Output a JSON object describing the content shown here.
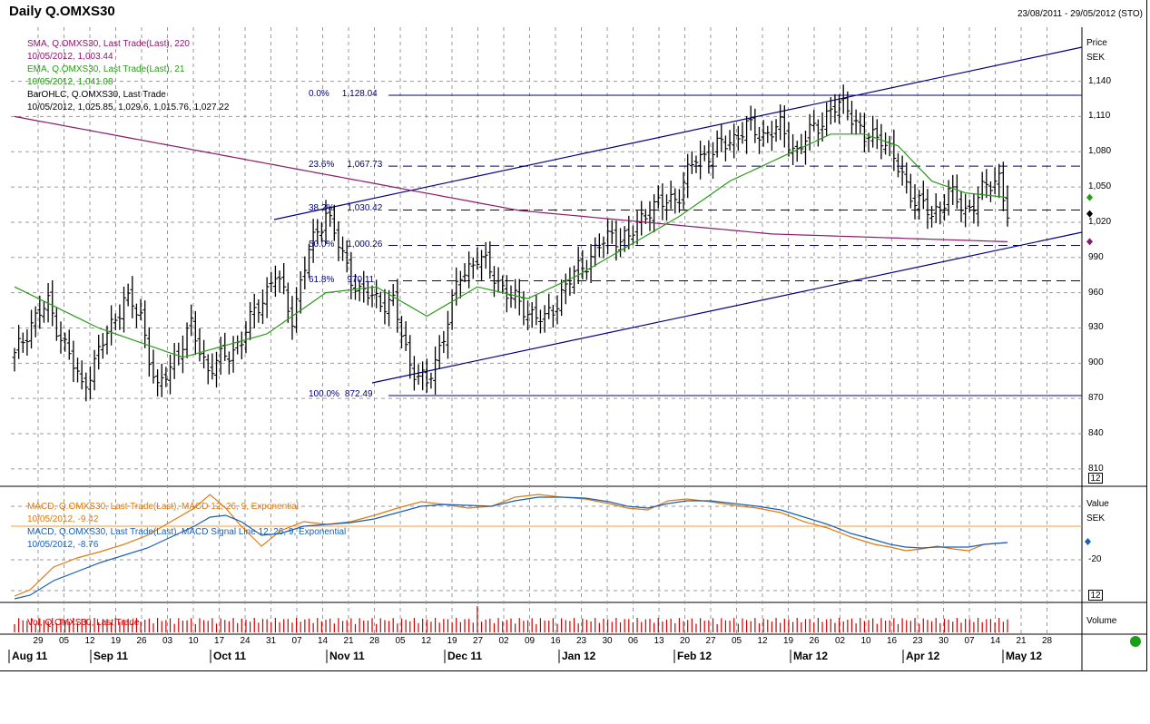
{
  "header": {
    "title": "Daily Q.OMXS30",
    "date_range": "23/08/2011 - 29/05/2012 (STO)"
  },
  "price_panel": {
    "axis_title": "Price",
    "axis_unit": "SEK",
    "ticks": [
      "1,140",
      "1,110",
      "1,080",
      "1,050",
      "1,020",
      "990",
      "960",
      "930",
      "900",
      "870",
      "840",
      "810"
    ],
    "tick_values": [
      1140,
      1110,
      1080,
      1050,
      1020,
      990,
      960,
      930,
      900,
      870,
      840,
      810
    ],
    "ylim": [
      796,
      1186
    ],
    "scale_button": "12",
    "legend": [
      {
        "line1": "SMA, Q.OMXS30, Last Trade(Last),  220",
        "line2": "10/05/2012, 1,003.44",
        "color": "#8b1a6b"
      },
      {
        "line1": "EMA, Q.OMXS30, Last Trade(Last),  21",
        "line2": "10/05/2012, 1,041.08",
        "color": "#2a9a1a"
      },
      {
        "line1": "BarOHLC, Q.OMXS30, Last Trade",
        "line2": "10/05/2012, 1,025.85, 1,029.6, 1,015.76, 1,027.22",
        "color": "#000000"
      }
    ],
    "fib_levels": [
      {
        "pct": "0.0%",
        "value": "1,128.04",
        "v": 1128.04,
        "style": "solid"
      },
      {
        "pct": "23.6%",
        "value": "1,067.73",
        "v": 1067.73,
        "style": "dash"
      },
      {
        "pct": "38.2%",
        "value": "1,030.42",
        "v": 1030.42,
        "style": "dash"
      },
      {
        "pct": "50.0%",
        "value": "1,000.26",
        "v": 1000.26,
        "style": "dash"
      },
      {
        "pct": "61.8%",
        "value": "970.11",
        "v": 970.11,
        "style": "dash"
      },
      {
        "pct": "100.0%",
        "value": "872.49",
        "v": 872.49,
        "style": "solid"
      }
    ],
    "markers": [
      {
        "v": 1041.08,
        "color": "#2a9a1a"
      },
      {
        "v": 1027.22,
        "color": "#000000"
      },
      {
        "v": 1003.44,
        "color": "#8b1a6b"
      }
    ]
  },
  "macd_panel": {
    "axis_title": "Value",
    "axis_unit": "SEK",
    "ticks": [
      "-20"
    ],
    "scale_button": "12",
    "legend": [
      {
        "line1": "MACD, Q.OMXS30, Last Trade(Last), MACD 12, 26, 9, Exponential",
        "line2": "10/05/2012, -9.42",
        "color": "#e07a10"
      },
      {
        "line1": "MACD, Q.OMXS30, Last Trade(Last), MACD Signal Line 12, 26, 9, Exponential",
        "line2": "10/05/2012, -8.76",
        "color": "#1a5fb4"
      }
    ]
  },
  "volume_panel": {
    "axis_title": "Volume",
    "legend": "Vol, Q.OMXS30, Last Trade",
    "color": "#cc0000"
  },
  "x_axis": {
    "days": [
      "29",
      "05",
      "12",
      "19",
      "26",
      "03",
      "10",
      "17",
      "24",
      "31",
      "07",
      "14",
      "21",
      "28",
      "05",
      "12",
      "19",
      "27",
      "02",
      "09",
      "16",
      "23",
      "30",
      "06",
      "13",
      "20",
      "27",
      "05",
      "12",
      "19",
      "26",
      "02",
      "10",
      "16",
      "23",
      "30",
      "07",
      "14",
      "21",
      "28"
    ],
    "months": [
      "Aug 11",
      "Sep 11",
      "Oct 11",
      "Nov 11",
      "Dec 11",
      "Jan 12",
      "Feb 12",
      "Mar 12",
      "Apr 12",
      "May 12"
    ]
  },
  "chart_data": {
    "type": "ohlc",
    "title": "Daily Q.OMXS30",
    "series": [
      {
        "name": "BarOHLC, Q.OMXS30, Last Trade",
        "close_points": [
          [
            0,
            905
          ],
          [
            4,
            935
          ],
          [
            8,
            950
          ],
          [
            12,
            915
          ],
          [
            16,
            880
          ],
          [
            19,
            900
          ],
          [
            22,
            925
          ],
          [
            26,
            955
          ],
          [
            30,
            940
          ],
          [
            34,
            875
          ],
          [
            38,
            905
          ],
          [
            42,
            930
          ],
          [
            46,
            895
          ],
          [
            50,
            905
          ],
          [
            54,
            920
          ],
          [
            58,
            950
          ],
          [
            62,
            975
          ],
          [
            66,
            940
          ],
          [
            70,
            995
          ],
          [
            74,
            1030
          ],
          [
            78,
            990
          ],
          [
            82,
            960
          ],
          [
            86,
            955
          ],
          [
            90,
            950
          ],
          [
            94,
            900
          ],
          [
            98,
            880
          ],
          [
            102,
            925
          ],
          [
            106,
            975
          ],
          [
            110,
            990
          ],
          [
            114,
            975
          ],
          [
            118,
            955
          ],
          [
            122,
            945
          ],
          [
            126,
            935
          ],
          [
            130,
            960
          ],
          [
            134,
            980
          ],
          [
            138,
            995
          ],
          [
            142,
            1010
          ],
          [
            146,
            1005
          ],
          [
            150,
            1030
          ],
          [
            154,
            1035
          ],
          [
            158,
            1045
          ],
          [
            162,
            1075
          ],
          [
            166,
            1080
          ],
          [
            170,
            1090
          ],
          [
            174,
            1100
          ],
          [
            178,
            1095
          ],
          [
            182,
            1100
          ],
          [
            186,
            1080
          ],
          [
            190,
            1100
          ],
          [
            194,
            1115
          ],
          [
            198,
            1120
          ],
          [
            202,
            1090
          ],
          [
            206,
            1095
          ],
          [
            210,
            1065
          ],
          [
            214,
            1040
          ],
          [
            218,
            1025
          ],
          [
            222,
            1045
          ],
          [
            226,
            1030
          ],
          [
            230,
            1045
          ],
          [
            234,
            1060
          ],
          [
            236,
            1027
          ]
        ]
      },
      {
        "name": "SMA, Q.OMXS30, Last Trade(Last),  220",
        "points": [
          [
            0,
            1110
          ],
          [
            60,
            1070
          ],
          [
            120,
            1030
          ],
          [
            180,
            1010
          ],
          [
            236,
            1003.44
          ]
        ]
      },
      {
        "name": "EMA, Q.OMXS30, Last Trade(Last),  21",
        "points": [
          [
            0,
            965
          ],
          [
            20,
            930
          ],
          [
            40,
            905
          ],
          [
            60,
            925
          ],
          [
            74,
            960
          ],
          [
            86,
            965
          ],
          [
            98,
            940
          ],
          [
            110,
            965
          ],
          [
            122,
            955
          ],
          [
            134,
            975
          ],
          [
            146,
            1000
          ],
          [
            158,
            1025
          ],
          [
            170,
            1055
          ],
          [
            182,
            1075
          ],
          [
            194,
            1095
          ],
          [
            202,
            1095
          ],
          [
            210,
            1085
          ],
          [
            218,
            1055
          ],
          [
            226,
            1045
          ],
          [
            236,
            1041.08
          ]
        ]
      }
    ]
  }
}
